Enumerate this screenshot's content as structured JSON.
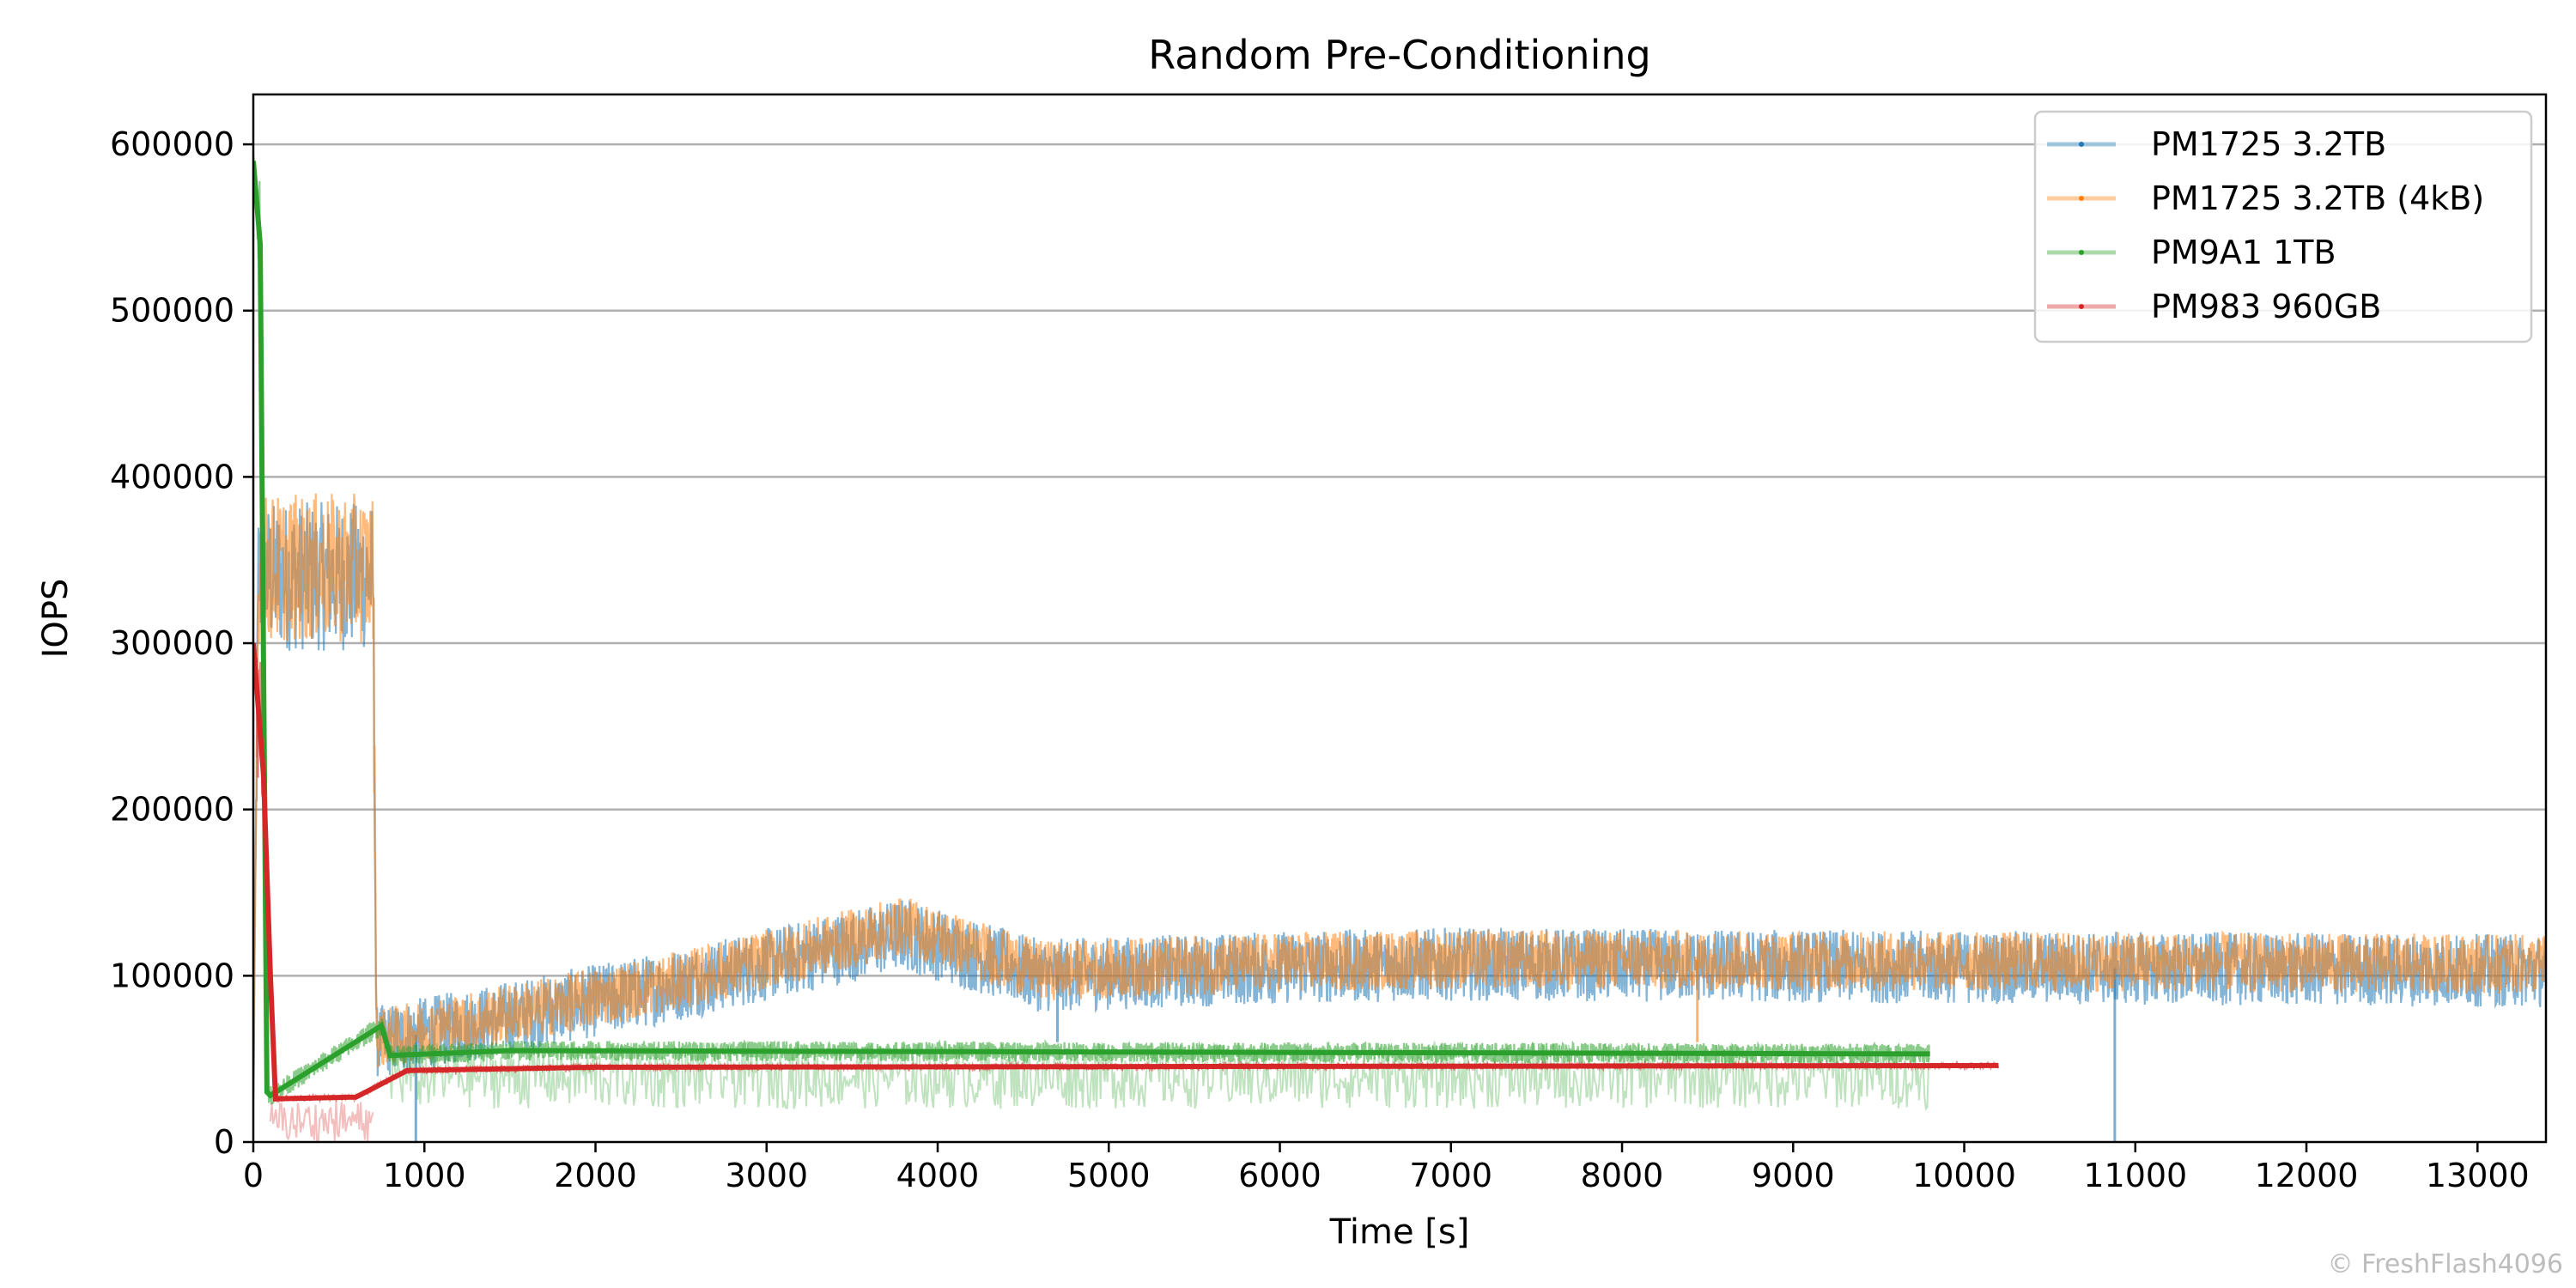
{
  "chart_data": {
    "type": "line",
    "title": "Random Pre-Conditioning",
    "xlabel": "Time [s]",
    "ylabel": "IOPS",
    "xlim": [
      0,
      13400
    ],
    "ylim": [
      0,
      630000
    ],
    "x_ticks": [
      0,
      1000,
      2000,
      3000,
      4000,
      5000,
      6000,
      7000,
      8000,
      9000,
      10000,
      11000,
      12000,
      13000
    ],
    "y_ticks": [
      0,
      100000,
      200000,
      300000,
      400000,
      500000,
      600000
    ],
    "grid": "y",
    "legend_position": "top-right",
    "series": [
      {
        "name": "PM1725 3.2TB",
        "color": "#1f77b4",
        "x_range": [
          0,
          13400
        ],
        "trend": [
          [
            0,
            20000
          ],
          [
            30,
            340000
          ],
          [
            700,
            340000
          ],
          [
            720,
            60000
          ],
          [
            1500,
            75000
          ],
          [
            2500,
            95000
          ],
          [
            3800,
            125000
          ],
          [
            4600,
            100000
          ],
          [
            6000,
            105000
          ],
          [
            7000,
            107000
          ],
          [
            13400,
            103000
          ]
        ],
        "noise_band": 22000,
        "dips": [
          [
            10880,
            0
          ],
          [
            4700,
            60000
          ],
          [
            950,
            0
          ]
        ]
      },
      {
        "name": "PM1725 3.2TB (4kB)",
        "color": "#ff7f0e",
        "x_range": [
          0,
          13400
        ],
        "trend": [
          [
            0,
            20000
          ],
          [
            30,
            345000
          ],
          [
            700,
            345000
          ],
          [
            720,
            62000
          ],
          [
            1500,
            77000
          ],
          [
            2500,
            97000
          ],
          [
            3800,
            130000
          ],
          [
            4600,
            103000
          ],
          [
            6000,
            108000
          ],
          [
            7000,
            110000
          ],
          [
            13400,
            107000
          ]
        ],
        "noise_band": 18000,
        "dips": [
          [
            8440,
            60000
          ]
        ]
      },
      {
        "name": "PM9A1 1TB",
        "color": "#2ca02c",
        "x_range": [
          0,
          9800
        ],
        "trend": [
          [
            0,
            590000
          ],
          [
            40,
            540000
          ],
          [
            80,
            30000
          ],
          [
            100,
            28000
          ],
          [
            750,
            70000
          ],
          [
            800,
            52000
          ],
          [
            1500,
            55000
          ],
          [
            9800,
            53000
          ]
        ],
        "noise_band": 6000,
        "scatter_band": [
          20000,
          60000
        ]
      },
      {
        "name": "PM983 960GB",
        "color": "#d62728",
        "x_range": [
          0,
          10200
        ],
        "trend": [
          [
            0,
            300000
          ],
          [
            60,
            220000
          ],
          [
            100,
            100000
          ],
          [
            130,
            26000
          ],
          [
            600,
            27000
          ],
          [
            900,
            43000
          ],
          [
            2000,
            45000
          ],
          [
            10200,
            46000
          ]
        ],
        "noise_band": 1500,
        "scatter_band": [
          0,
          25000
        ]
      }
    ]
  },
  "watermark": "© FreshFlash4096"
}
